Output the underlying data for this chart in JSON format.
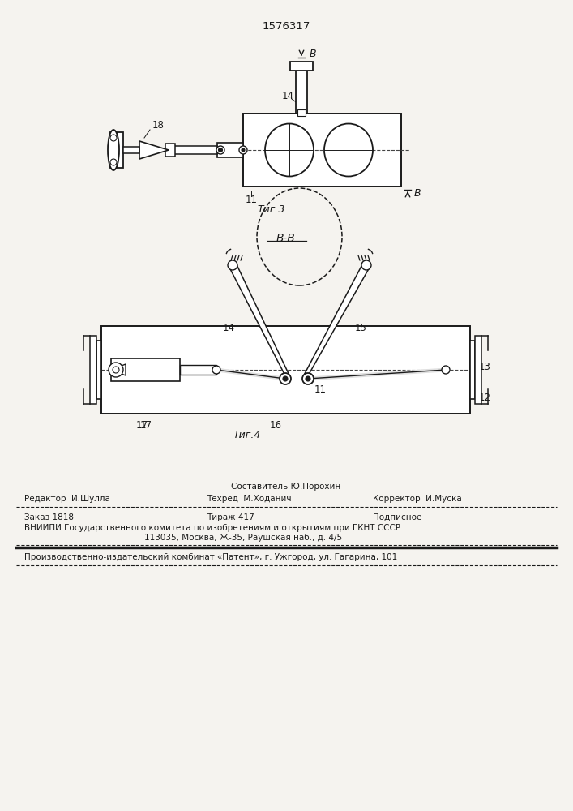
{
  "patent_number": "1576317",
  "fig3_label": "Τиг.3",
  "fig4_label": "Τиг.4",
  "bg_color": "#f5f3ef",
  "line_color": "#1a1a1a",
  "footer": {
    "sostavitel": "Составитель Ю.Порохин",
    "redaktor": "Редактор  И.Шулла",
    "tehred": "Техред  М.Ходанич",
    "korrektor": "Корректор  И.Муска",
    "zakaz": "Заказ 1818",
    "tirazh": "Тираж 417",
    "podpisnoe": "Подписное",
    "vniipи": "ВНИИПИ Государственного комитета по изобретениям и открытиям при ГКНТ СССР",
    "address": "113035, Москва, Ж-35, Раушская наб., д. 4/5",
    "patent_line": "Производственно-издательский комбинат «Патент», г. Ужгород, ул. Гагарина, 101"
  }
}
